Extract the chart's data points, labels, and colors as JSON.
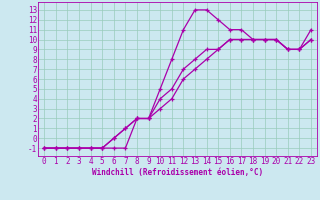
{
  "xlabel": "Windchill (Refroidissement éolien,°C)",
  "bg_color": "#cce8f0",
  "line_color": "#aa00aa",
  "grid_color": "#99ccbb",
  "xlim": [
    -0.5,
    23.5
  ],
  "ylim": [
    -1.8,
    13.8
  ],
  "xticks": [
    0,
    1,
    2,
    3,
    4,
    5,
    6,
    7,
    8,
    9,
    10,
    11,
    12,
    13,
    14,
    15,
    16,
    17,
    18,
    19,
    20,
    21,
    22,
    23
  ],
  "yticks": [
    -1,
    0,
    1,
    2,
    3,
    4,
    5,
    6,
    7,
    8,
    9,
    10,
    11,
    12,
    13
  ],
  "series": [
    [
      [
        0,
        -1
      ],
      [
        1,
        -1
      ],
      [
        2,
        -1
      ],
      [
        3,
        -1
      ],
      [
        4,
        -1
      ],
      [
        5,
        -1
      ],
      [
        6,
        -1
      ],
      [
        7,
        -1
      ],
      [
        8,
        2
      ],
      [
        9,
        2
      ],
      [
        10,
        5
      ],
      [
        11,
        8
      ],
      [
        12,
        11
      ],
      [
        13,
        13
      ],
      [
        14,
        13
      ],
      [
        15,
        12
      ],
      [
        16,
        11
      ],
      [
        17,
        11
      ],
      [
        18,
        10
      ],
      [
        19,
        10
      ],
      [
        20,
        10
      ],
      [
        21,
        9
      ],
      [
        22,
        9
      ],
      [
        23,
        11
      ]
    ],
    [
      [
        0,
        -1
      ],
      [
        1,
        -1
      ],
      [
        2,
        -1
      ],
      [
        3,
        -1
      ],
      [
        4,
        -1
      ],
      [
        5,
        -1
      ],
      [
        6,
        0
      ],
      [
        7,
        1
      ],
      [
        8,
        2
      ],
      [
        9,
        2
      ],
      [
        10,
        4
      ],
      [
        11,
        5
      ],
      [
        12,
        7
      ],
      [
        13,
        8
      ],
      [
        14,
        9
      ],
      [
        15,
        9
      ],
      [
        16,
        10
      ],
      [
        17,
        10
      ],
      [
        18,
        10
      ],
      [
        19,
        10
      ],
      [
        20,
        10
      ],
      [
        21,
        9
      ],
      [
        22,
        9
      ],
      [
        23,
        10
      ]
    ],
    [
      [
        0,
        -1
      ],
      [
        1,
        -1
      ],
      [
        2,
        -1
      ],
      [
        3,
        -1
      ],
      [
        4,
        -1
      ],
      [
        5,
        -1
      ],
      [
        6,
        0
      ],
      [
        7,
        1
      ],
      [
        8,
        2
      ],
      [
        9,
        2
      ],
      [
        10,
        3
      ],
      [
        11,
        4
      ],
      [
        12,
        6
      ],
      [
        13,
        7
      ],
      [
        14,
        8
      ],
      [
        15,
        9
      ],
      [
        16,
        10
      ],
      [
        17,
        10
      ],
      [
        18,
        10
      ],
      [
        19,
        10
      ],
      [
        20,
        10
      ],
      [
        21,
        9
      ],
      [
        22,
        9
      ],
      [
        23,
        10
      ]
    ]
  ],
  "tick_fontsize": 5.5,
  "xlabel_fontsize": 5.5,
  "marker_size": 3,
  "line_width": 0.9
}
